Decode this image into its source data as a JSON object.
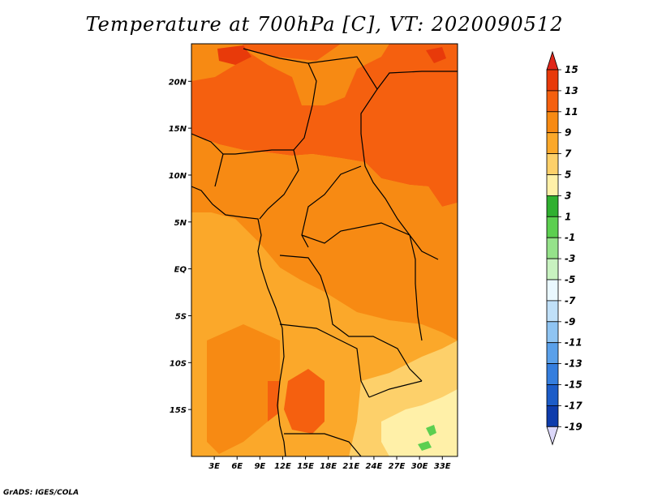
{
  "title": "Temperature at 700hPa [C], VT: 2020090512",
  "credit": "GrADS: IGES/COLA",
  "map": {
    "lon_range": [
      0,
      35
    ],
    "lat_range": [
      -20,
      24
    ],
    "x_ticks": [
      {
        "value": 3,
        "label": "3E"
      },
      {
        "value": 6,
        "label": "6E"
      },
      {
        "value": 9,
        "label": "9E"
      },
      {
        "value": 12,
        "label": "12E"
      },
      {
        "value": 15,
        "label": "15E"
      },
      {
        "value": 18,
        "label": "18E"
      },
      {
        "value": 21,
        "label": "21E"
      },
      {
        "value": 24,
        "label": "24E"
      },
      {
        "value": 27,
        "label": "27E"
      },
      {
        "value": 30,
        "label": "30E"
      },
      {
        "value": 33,
        "label": "33E"
      }
    ],
    "y_ticks": [
      {
        "value": 20,
        "label": "20N"
      },
      {
        "value": 15,
        "label": "15N"
      },
      {
        "value": 10,
        "label": "10N"
      },
      {
        "value": 5,
        "label": "5N"
      },
      {
        "value": 0,
        "label": "EQ"
      },
      {
        "value": -5,
        "label": "5S"
      },
      {
        "value": -10,
        "label": "10S"
      },
      {
        "value": -15,
        "label": "15S"
      }
    ]
  },
  "colorbar": {
    "levels": [
      "15",
      "13",
      "11",
      "9",
      "7",
      "5",
      "3",
      "1",
      "-1",
      "-3",
      "-5",
      "-7",
      "-9",
      "-11",
      "-13",
      "-15",
      "-17",
      "-19"
    ],
    "colors": [
      "#e83a0a",
      "#f5600f",
      "#f78a13",
      "#fba82a",
      "#fdd06a",
      "#fff0a8",
      "#30b030",
      "#5ccf50",
      "#95e28a",
      "#c8f2c0",
      "#eaf8ff",
      "#c0e0f8",
      "#8fc4f2",
      "#5aa0ea",
      "#357ede",
      "#1c5cc8",
      "#0e3cac",
      "#082080",
      "#04105a"
    ],
    "top_arrow_color": "#e0261a",
    "bottom_arrow_color": "#dcd8fa"
  }
}
